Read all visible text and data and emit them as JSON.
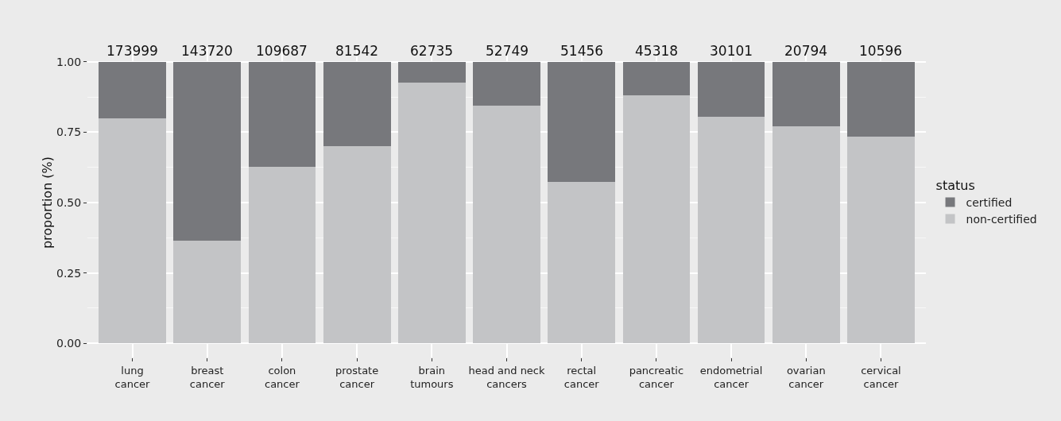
{
  "chart_data": {
    "type": "bar",
    "ylabel": "proportion (%)",
    "legend_title": "status",
    "categories": [
      "lung\ncancer",
      "breast\ncancer",
      "colon\ncancer",
      "prostate\ncancer",
      "brain\ntumours",
      "head and neck\ncancers",
      "rectal\ncancer",
      "pancreatic\ncancer",
      "endometrial\ncancer",
      "ovarian\ncancer",
      "cervical\ncancer"
    ],
    "series": [
      {
        "name": "non-certified",
        "color": "#c3c4c6",
        "values": [
          0.8,
          0.366,
          0.628,
          0.7,
          0.925,
          0.845,
          0.572,
          0.88,
          0.805,
          0.771,
          0.733
        ]
      },
      {
        "name": "certified",
        "color": "#77787c",
        "values": [
          0.2,
          0.634,
          0.372,
          0.3,
          0.075,
          0.155,
          0.428,
          0.12,
          0.195,
          0.229,
          0.267
        ]
      }
    ],
    "stacked": true,
    "annotations": [
      {
        "text": "173999",
        "x": "lung\ncancer",
        "y": 1
      },
      {
        "text": "143720",
        "x": "breast\ncancer",
        "y": 1
      },
      {
        "text": "109687",
        "x": "colon\ncancer",
        "y": 1
      },
      {
        "text": "81542",
        "x": "prostate\ncancer",
        "y": 1
      },
      {
        "text": "62735",
        "x": "brain\ntumours",
        "y": 1
      },
      {
        "text": "52749",
        "x": "head and neck\ncancers",
        "y": 1
      },
      {
        "text": "51456",
        "x": "rectal\ncancer",
        "y": 1
      },
      {
        "text": "45318",
        "x": "pancreatic\ncancer",
        "y": 1
      },
      {
        "text": "30101",
        "x": "endometrial\ncancer",
        "y": 1
      },
      {
        "text": "20794",
        "x": "ovarian\ncancer",
        "y": 1
      },
      {
        "text": "10596",
        "x": "cervical\ncancer",
        "y": 1
      }
    ],
    "ylim": [
      -0.05,
      1.05
    ],
    "yticks": [
      {
        "value": 0,
        "label": "0.00"
      },
      {
        "value": 0.25,
        "label": "0.25"
      },
      {
        "value": 0.5,
        "label": "0.50"
      },
      {
        "value": 0.75,
        "label": "0.75"
      },
      {
        "value": 1,
        "label": "1.00"
      }
    ],
    "grid": true,
    "legend": "right"
  }
}
